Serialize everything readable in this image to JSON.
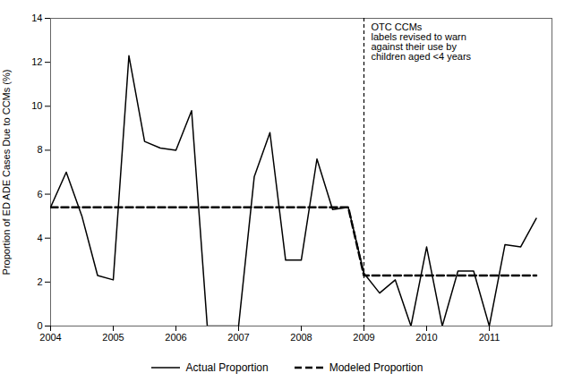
{
  "chart_data": {
    "type": "line",
    "ylabel": "Proportion of ED ADE Cases Due to CCMs (%)",
    "xlim": [
      2004.0,
      2012.0
    ],
    "ylim": [
      0,
      14
    ],
    "xticks": [
      2004,
      2005,
      2006,
      2007,
      2008,
      2009,
      2010,
      2011
    ],
    "yticks": [
      0,
      2,
      4,
      6,
      8,
      10,
      12,
      14
    ],
    "grid": false,
    "legend": "bottom",
    "series": [
      {
        "name": "Actual Proportion",
        "color": "#000000",
        "line_style": "solid",
        "x": [
          2004.0,
          2004.25,
          2004.5,
          2004.75,
          2005.0,
          2005.25,
          2005.5,
          2005.75,
          2006.0,
          2006.25,
          2006.5,
          2006.75,
          2007.0,
          2007.25,
          2007.5,
          2007.75,
          2008.0,
          2008.25,
          2008.5,
          2008.75,
          2009.0,
          2009.25,
          2009.5,
          2009.75,
          2010.0,
          2010.25,
          2010.5,
          2010.75,
          2011.0,
          2011.25,
          2011.5,
          2011.75
        ],
        "values": [
          5.4,
          7.0,
          5.0,
          2.3,
          2.1,
          12.3,
          8.4,
          8.1,
          8.0,
          9.8,
          0.0,
          0.0,
          0.0,
          6.8,
          8.8,
          3.0,
          3.0,
          7.6,
          5.3,
          5.4,
          2.4,
          1.5,
          2.1,
          0.0,
          3.6,
          0.0,
          2.5,
          2.5,
          0.0,
          3.7,
          3.6,
          4.9
        ]
      },
      {
        "name": "Modeled Proportion",
        "color": "#000000",
        "line_style": "dashed",
        "x": [
          2004.0,
          2008.75,
          2008.75,
          2009.0,
          2009.0,
          2011.75
        ],
        "values": [
          5.4,
          5.4,
          5.4,
          2.3,
          2.3,
          2.3
        ]
      }
    ],
    "annotations": [
      {
        "text": "OTC CCMs\nlabels revised to warn\nagainst their use by\nchildren aged <4 years",
        "x": 2009.0,
        "line_style": "dashed"
      }
    ]
  }
}
